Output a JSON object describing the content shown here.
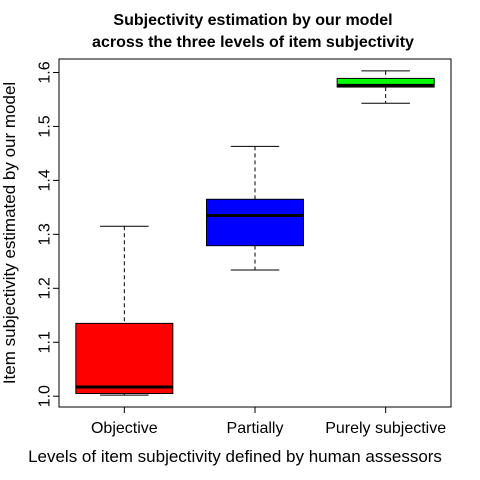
{
  "chart_data": {
    "type": "boxplot",
    "title_lines": [
      "Subjectivity estimation by our model",
      "across the three levels of item subjectivity"
    ],
    "xlabel": "Levels of item subjectivity defined by human assessors",
    "ylabel": "Item subjectivity estimated by our model",
    "ylim": [
      0.98,
      1.625
    ],
    "yticks": [
      "1.0",
      "1.1",
      "1.2",
      "1.3",
      "1.4",
      "1.5",
      "1.6"
    ],
    "grid": false,
    "legend": "none",
    "categories": [
      "Objective",
      "Partially",
      "Purely subjective"
    ],
    "boxes": [
      {
        "category": "Objective",
        "min": 1.002,
        "q1": 1.005,
        "median": 1.017,
        "q3": 1.135,
        "max": 1.315,
        "color": "#ff0000"
      },
      {
        "category": "Partially",
        "min": 1.234,
        "q1": 1.279,
        "median": 1.335,
        "q3": 1.365,
        "max": 1.463,
        "color": "#0000ff"
      },
      {
        "category": "Purely subjective",
        "min": 1.543,
        "q1": 1.573,
        "median": 1.576,
        "q3": 1.589,
        "max": 1.603,
        "color": "#00ff00"
      }
    ]
  }
}
